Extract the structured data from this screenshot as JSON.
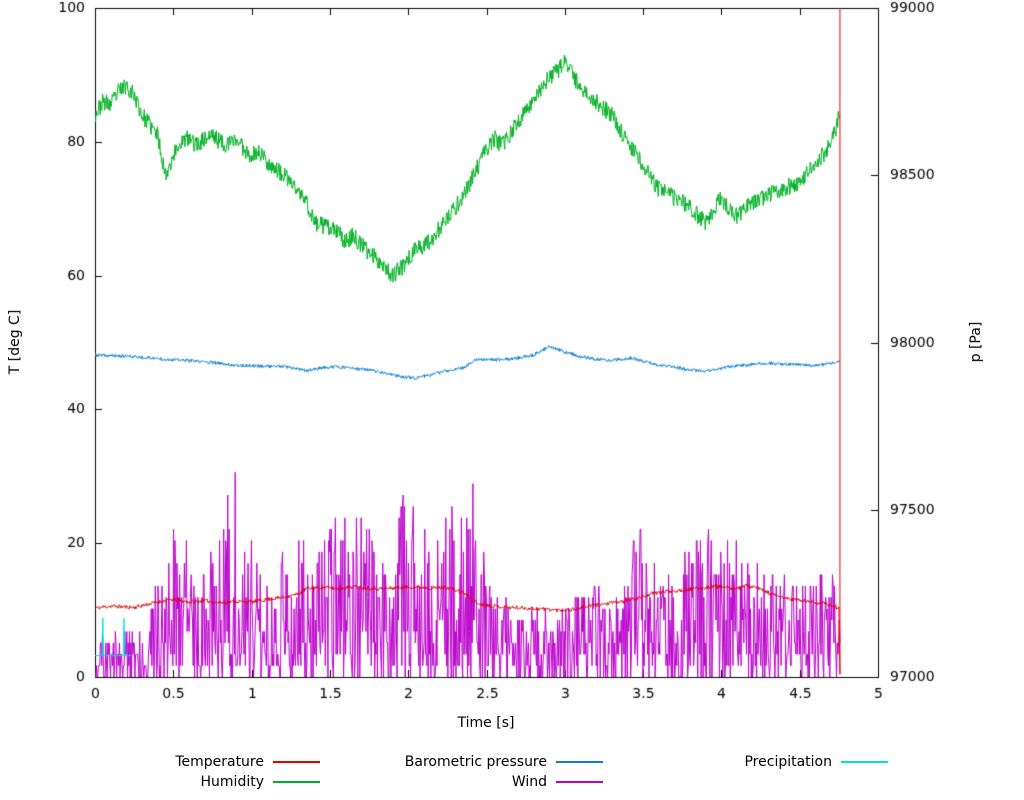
{
  "chart_data": {
    "type": "line",
    "title": "",
    "xlabel": "Time [s]",
    "ylabel_left": "T [deg C]",
    "ylabel_right": "p [Pa]",
    "x_range": [
      0,
      5
    ],
    "y_left_range": [
      0,
      100
    ],
    "y_right_range": [
      97000,
      99000
    ],
    "grid": false,
    "legend_position": "bottom",
    "x_ticks": [
      {
        "value": 0,
        "label": "0"
      },
      {
        "value": 0.5,
        "label": "0.5"
      },
      {
        "value": 1,
        "label": "1"
      },
      {
        "value": 1.5,
        "label": "1.5"
      },
      {
        "value": 2,
        "label": "2"
      },
      {
        "value": 2.5,
        "label": "2.5"
      },
      {
        "value": 3,
        "label": "3"
      },
      {
        "value": 3.5,
        "label": "3.5"
      },
      {
        "value": 4,
        "label": "4"
      },
      {
        "value": 4.5,
        "label": "4.5"
      },
      {
        "value": 5,
        "label": "5"
      }
    ],
    "y_left_ticks": [
      {
        "value": 0,
        "label": "0"
      },
      {
        "value": 20,
        "label": "20"
      },
      {
        "value": 40,
        "label": "40"
      },
      {
        "value": 60,
        "label": "60"
      },
      {
        "value": 80,
        "label": "80"
      },
      {
        "value": 100,
        "label": "100"
      }
    ],
    "y_right_ticks": [
      {
        "value": 97000,
        "label": "97000"
      },
      {
        "value": 97500,
        "label": "97500"
      },
      {
        "value": 98000,
        "label": "98000"
      },
      {
        "value": 98500,
        "label": "98500"
      },
      {
        "value": 99000,
        "label": "99000"
      }
    ],
    "series": [
      {
        "name": "Humidity",
        "color": "#00b025",
        "axis": "left",
        "seed": 23,
        "noise": 1.3,
        "samples": 1300,
        "anchors": [
          [
            0,
            84
          ],
          [
            0.05,
            86
          ],
          [
            0.1,
            85.5
          ],
          [
            0.15,
            87.5
          ],
          [
            0.2,
            88.5
          ],
          [
            0.25,
            87
          ],
          [
            0.3,
            84
          ],
          [
            0.35,
            82.5
          ],
          [
            0.4,
            81
          ],
          [
            0.45,
            75
          ],
          [
            0.5,
            78
          ],
          [
            0.55,
            80
          ],
          [
            0.6,
            80.5
          ],
          [
            0.65,
            79.5
          ],
          [
            0.7,
            80.5
          ],
          [
            0.75,
            81
          ],
          [
            0.8,
            80
          ],
          [
            0.85,
            79.5
          ],
          [
            0.9,
            80.5
          ],
          [
            0.95,
            79
          ],
          [
            1.0,
            78
          ],
          [
            1.05,
            78.5
          ],
          [
            1.1,
            77
          ],
          [
            1.15,
            76
          ],
          [
            1.2,
            75
          ],
          [
            1.25,
            74
          ],
          [
            1.3,
            72.5
          ],
          [
            1.35,
            71
          ],
          [
            1.4,
            68
          ],
          [
            1.45,
            67.5
          ],
          [
            1.5,
            67
          ],
          [
            1.55,
            66.5
          ],
          [
            1.6,
            65
          ],
          [
            1.65,
            66
          ],
          [
            1.7,
            64.5
          ],
          [
            1.75,
            63.5
          ],
          [
            1.8,
            62.5
          ],
          [
            1.85,
            61.5
          ],
          [
            1.9,
            60
          ],
          [
            1.95,
            61
          ],
          [
            2.0,
            62.5
          ],
          [
            2.05,
            64
          ],
          [
            2.1,
            64.5
          ],
          [
            2.15,
            65.5
          ],
          [
            2.2,
            67
          ],
          [
            2.25,
            68.5
          ],
          [
            2.3,
            70
          ],
          [
            2.35,
            72
          ],
          [
            2.4,
            74
          ],
          [
            2.45,
            76.5
          ],
          [
            2.5,
            79
          ],
          [
            2.55,
            80.5
          ],
          [
            2.6,
            79.5
          ],
          [
            2.65,
            81
          ],
          [
            2.7,
            83
          ],
          [
            2.75,
            84.5
          ],
          [
            2.8,
            86.5
          ],
          [
            2.85,
            88
          ],
          [
            2.9,
            89.5
          ],
          [
            2.95,
            90.5
          ],
          [
            3.0,
            92
          ],
          [
            3.05,
            90
          ],
          [
            3.1,
            88
          ],
          [
            3.15,
            87
          ],
          [
            3.2,
            86
          ],
          [
            3.25,
            85
          ],
          [
            3.3,
            84
          ],
          [
            3.35,
            82
          ],
          [
            3.4,
            80
          ],
          [
            3.45,
            78.5
          ],
          [
            3.5,
            76.5
          ],
          [
            3.55,
            74.5
          ],
          [
            3.6,
            73
          ],
          [
            3.65,
            72.5
          ],
          [
            3.7,
            71.5
          ],
          [
            3.75,
            71
          ],
          [
            3.8,
            70
          ],
          [
            3.85,
            69
          ],
          [
            3.9,
            68
          ],
          [
            3.95,
            70
          ],
          [
            4.0,
            71.5
          ],
          [
            4.05,
            70
          ],
          [
            4.1,
            69
          ],
          [
            4.15,
            70
          ],
          [
            4.2,
            71
          ],
          [
            4.25,
            71.5
          ],
          [
            4.3,
            72
          ],
          [
            4.35,
            72.5
          ],
          [
            4.4,
            73
          ],
          [
            4.45,
            73.5
          ],
          [
            4.5,
            74
          ],
          [
            4.55,
            75.5
          ],
          [
            4.6,
            77
          ],
          [
            4.65,
            78
          ],
          [
            4.7,
            80
          ],
          [
            4.73,
            81.5
          ],
          [
            4.757,
            85
          ]
        ]
      },
      {
        "name": "Barometric pressure",
        "color": "#0b7fd4",
        "axis": "right",
        "seed": 37,
        "noise": 5,
        "samples": 1300,
        "anchors": [
          [
            0,
            97962
          ],
          [
            0.15,
            97960
          ],
          [
            0.3,
            97956
          ],
          [
            0.45,
            97950
          ],
          [
            0.6,
            97946
          ],
          [
            0.75,
            97940
          ],
          [
            0.9,
            97932
          ],
          [
            1.05,
            97930
          ],
          [
            1.2,
            97928
          ],
          [
            1.35,
            97916
          ],
          [
            1.45,
            97924
          ],
          [
            1.55,
            97928
          ],
          [
            1.65,
            97922
          ],
          [
            1.75,
            97918
          ],
          [
            1.85,
            97908
          ],
          [
            1.95,
            97898
          ],
          [
            2.05,
            97894
          ],
          [
            2.15,
            97904
          ],
          [
            2.25,
            97916
          ],
          [
            2.35,
            97924
          ],
          [
            2.42,
            97946
          ],
          [
            2.5,
            97950
          ],
          [
            2.6,
            97948
          ],
          [
            2.7,
            97954
          ],
          [
            2.8,
            97962
          ],
          [
            2.9,
            97988
          ],
          [
            3.0,
            97972
          ],
          [
            3.1,
            97958
          ],
          [
            3.2,
            97950
          ],
          [
            3.3,
            97946
          ],
          [
            3.42,
            97954
          ],
          [
            3.5,
            97944
          ],
          [
            3.6,
            97932
          ],
          [
            3.7,
            97926
          ],
          [
            3.8,
            97918
          ],
          [
            3.9,
            97914
          ],
          [
            4.0,
            97924
          ],
          [
            4.1,
            97930
          ],
          [
            4.2,
            97934
          ],
          [
            4.3,
            97938
          ],
          [
            4.4,
            97936
          ],
          [
            4.5,
            97934
          ],
          [
            4.6,
            97930
          ],
          [
            4.68,
            97936
          ],
          [
            4.757,
            97944
          ]
        ]
      },
      {
        "name": "Wind",
        "color": "#bb00cc",
        "axis": "left",
        "seed": 51,
        "mode": "envelope",
        "samples": 1100,
        "quantize": 1.7,
        "envelope": [
          [
            0,
            6
          ],
          [
            0.15,
            7
          ],
          [
            0.3,
            8
          ],
          [
            0.4,
            14
          ],
          [
            0.5,
            22
          ],
          [
            0.55,
            26
          ],
          [
            0.6,
            22
          ],
          [
            0.68,
            18
          ],
          [
            0.75,
            20
          ],
          [
            0.82,
            22
          ],
          [
            0.88,
            35
          ],
          [
            0.92,
            26
          ],
          [
            1.0,
            22
          ],
          [
            1.1,
            18
          ],
          [
            1.2,
            20
          ],
          [
            1.3,
            21
          ],
          [
            1.4,
            18
          ],
          [
            1.5,
            23
          ],
          [
            1.6,
            25
          ],
          [
            1.7,
            26
          ],
          [
            1.8,
            20
          ],
          [
            1.9,
            18
          ],
          [
            1.98,
            31
          ],
          [
            2.05,
            26
          ],
          [
            2.15,
            20
          ],
          [
            2.25,
            26
          ],
          [
            2.33,
            30
          ],
          [
            2.42,
            29
          ],
          [
            2.5,
            16
          ],
          [
            2.6,
            12
          ],
          [
            2.7,
            11
          ],
          [
            2.8,
            12
          ],
          [
            2.9,
            10
          ],
          [
            3.0,
            11
          ],
          [
            3.1,
            13
          ],
          [
            3.2,
            14
          ],
          [
            3.3,
            12
          ],
          [
            3.4,
            16
          ],
          [
            3.5,
            26
          ],
          [
            3.6,
            18
          ],
          [
            3.7,
            16
          ],
          [
            3.8,
            20
          ],
          [
            3.9,
            23
          ],
          [
            4.0,
            20
          ],
          [
            4.1,
            22
          ],
          [
            4.2,
            18
          ],
          [
            4.3,
            17
          ],
          [
            4.4,
            16
          ],
          [
            4.5,
            15
          ],
          [
            4.6,
            17
          ],
          [
            4.7,
            19
          ],
          [
            4.757,
            12
          ]
        ]
      },
      {
        "name": "Precipitation",
        "color": "#00dede",
        "axis": "left",
        "seed": 5,
        "mode": "points",
        "points": [
          [
            0,
            3.2
          ],
          [
            0.045,
            3.2
          ],
          [
            0.05,
            8.8
          ],
          [
            0.055,
            3.2
          ],
          [
            0.1,
            3.2
          ],
          [
            0.18,
            3.2
          ],
          [
            0.185,
            8.8
          ],
          [
            0.19,
            3.2
          ],
          [
            0.23,
            3.2
          ]
        ]
      },
      {
        "name": "Temperature",
        "color": "#dd0000",
        "axis": "left",
        "seed": 11,
        "noise": 0.3,
        "samples": 1000,
        "anchors": [
          [
            0,
            10.3
          ],
          [
            0.1,
            10.6
          ],
          [
            0.25,
            10.4
          ],
          [
            0.4,
            11.2
          ],
          [
            0.5,
            11.6
          ],
          [
            0.6,
            11.2
          ],
          [
            0.7,
            11.4
          ],
          [
            0.8,
            11.1
          ],
          [
            0.9,
            11.3
          ],
          [
            1.0,
            11.2
          ],
          [
            1.1,
            11.6
          ],
          [
            1.2,
            11.9
          ],
          [
            1.3,
            12.4
          ],
          [
            1.35,
            13.2
          ],
          [
            1.45,
            13.4
          ],
          [
            1.55,
            13.2
          ],
          [
            1.65,
            13.5
          ],
          [
            1.75,
            13.3
          ],
          [
            1.85,
            13.2
          ],
          [
            1.95,
            13.4
          ],
          [
            2.05,
            13.5
          ],
          [
            2.15,
            13.3
          ],
          [
            2.25,
            13.4
          ],
          [
            2.35,
            12.6
          ],
          [
            2.45,
            10.9
          ],
          [
            2.55,
            10.6
          ],
          [
            2.65,
            10.4
          ],
          [
            2.75,
            10.3
          ],
          [
            2.85,
            10.2
          ],
          [
            2.95,
            10.0
          ],
          [
            3.05,
            10.1
          ],
          [
            3.15,
            10.6
          ],
          [
            3.25,
            10.9
          ],
          [
            3.35,
            11.2
          ],
          [
            3.45,
            11.7
          ],
          [
            3.55,
            12.4
          ],
          [
            3.65,
            12.8
          ],
          [
            3.75,
            13.0
          ],
          [
            3.85,
            13.2
          ],
          [
            3.95,
            13.6
          ],
          [
            4.05,
            13.3
          ],
          [
            4.1,
            13.1
          ],
          [
            4.15,
            13.7
          ],
          [
            4.25,
            13.1
          ],
          [
            4.35,
            12.1
          ],
          [
            4.45,
            11.6
          ],
          [
            4.55,
            11.3
          ],
          [
            4.65,
            11.0
          ],
          [
            4.7,
            10.7
          ],
          [
            4.75,
            10.3
          ]
        ],
        "append": [
          [
            4.757,
            0.4
          ],
          [
            4.757,
            100
          ]
        ]
      }
    ],
    "legend": {
      "rows": [
        [
          "Temperature",
          "Barometric pressure",
          "Precipitation"
        ],
        [
          "Humidity",
          "Wind"
        ]
      ]
    }
  }
}
